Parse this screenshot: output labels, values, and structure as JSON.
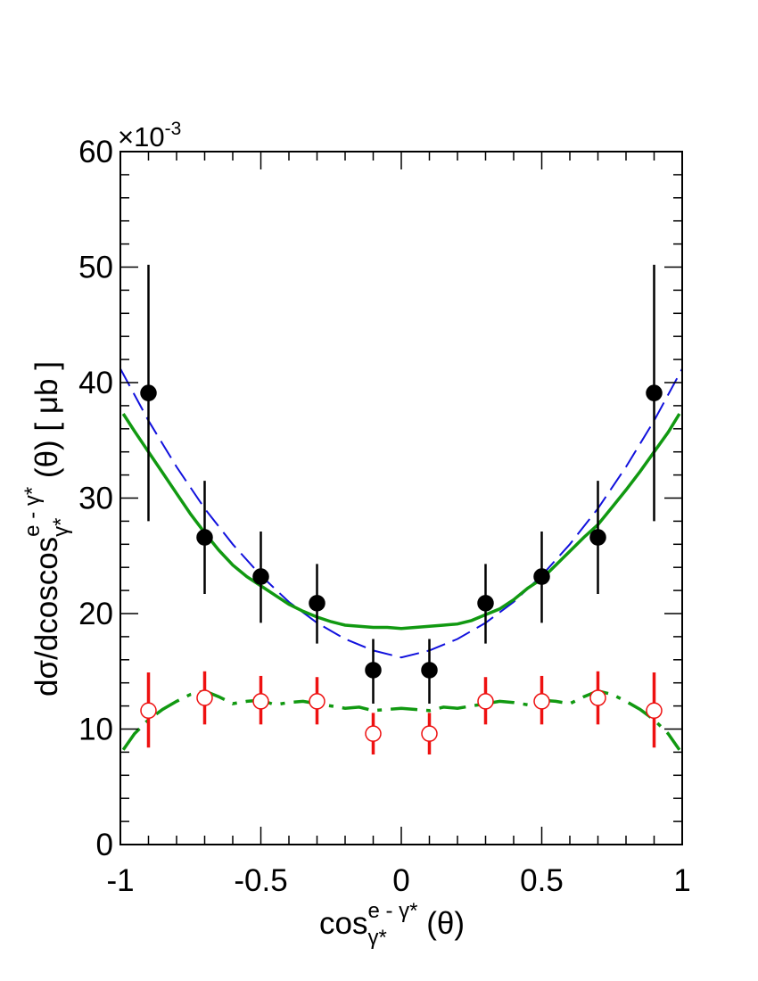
{
  "chart_data": {
    "type": "scatter",
    "xlim": [
      -1,
      1
    ],
    "ylim": [
      0,
      0.06
    ],
    "x_ticks": [
      -1,
      -0.5,
      0,
      0.5,
      1
    ],
    "y_ticks": [
      0,
      10,
      20,
      30,
      40,
      50,
      60
    ],
    "x_tick_labels": [
      "-1",
      "-0.5",
      "0",
      "0.5",
      "1"
    ],
    "y_tick_labels": [
      "0",
      "10",
      "20",
      "30",
      "40",
      "50",
      "60"
    ],
    "y_multiplier": {
      "base": "×10",
      "exponent": "-3"
    },
    "xlabel": {
      "main": "cos",
      "superscript": "e - γ*",
      "subscript": "γ*",
      "suffix": " (θ)"
    },
    "ylabel": {
      "main": "dσ/dcoscos",
      "superscript": "e - γ*",
      "subscript": "γ*",
      "suffix": " (θ) [ μb ]"
    },
    "grid": false,
    "legend": "none",
    "series": [
      {
        "kind": "points",
        "marker": "filled-circle",
        "color": "#000000",
        "x": [
          -0.9,
          -0.7,
          -0.5,
          -0.3,
          -0.1,
          0.1,
          0.3,
          0.5,
          0.7,
          0.9
        ],
        "y": [
          0.0391,
          0.0266,
          0.0232,
          0.0209,
          0.0151,
          0.0151,
          0.0209,
          0.0232,
          0.0266,
          0.0391
        ],
        "y_low": [
          0.028,
          0.0217,
          0.0192,
          0.0174,
          0.0122,
          0.0122,
          0.0174,
          0.0192,
          0.0217,
          0.028
        ],
        "y_high": [
          0.0502,
          0.0315,
          0.0271,
          0.0243,
          0.0178,
          0.0178,
          0.0243,
          0.0271,
          0.0315,
          0.0502
        ]
      },
      {
        "kind": "points",
        "marker": "open-circle",
        "color": "#ee1111",
        "x": [
          -0.9,
          -0.7,
          -0.5,
          -0.3,
          -0.1,
          0.1,
          0.3,
          0.5,
          0.7,
          0.9
        ],
        "y": [
          0.0116,
          0.0127,
          0.0124,
          0.0124,
          0.0096,
          0.0096,
          0.0124,
          0.0124,
          0.0127,
          0.0116
        ],
        "y_low": [
          0.0084,
          0.0104,
          0.0104,
          0.0104,
          0.0078,
          0.0078,
          0.0104,
          0.0104,
          0.0104,
          0.0084
        ],
        "y_high": [
          0.0149,
          0.015,
          0.0146,
          0.0145,
          0.0114,
          0.0114,
          0.0145,
          0.0146,
          0.015,
          0.0149
        ]
      },
      {
        "kind": "curve",
        "style": "dashed",
        "color": "#1111dd",
        "x": [
          -1,
          -0.9,
          -0.8,
          -0.7,
          -0.6,
          -0.5,
          -0.4,
          -0.3,
          -0.2,
          -0.1,
          0,
          0.1,
          0.2,
          0.3,
          0.4,
          0.5,
          0.6,
          0.7,
          0.8,
          0.9,
          1
        ],
        "y": [
          0.0412,
          0.0367,
          0.0327,
          0.0291,
          0.026,
          0.0233,
          0.021,
          0.0192,
          0.0178,
          0.0168,
          0.0162,
          0.0168,
          0.0178,
          0.0192,
          0.021,
          0.0233,
          0.026,
          0.0291,
          0.0327,
          0.0367,
          0.0412
        ]
      },
      {
        "kind": "curve",
        "style": "solid",
        "color": "#119911",
        "x": [
          -0.99,
          -0.95,
          -0.9,
          -0.85,
          -0.8,
          -0.75,
          -0.7,
          -0.65,
          -0.6,
          -0.55,
          -0.5,
          -0.45,
          -0.4,
          -0.35,
          -0.3,
          -0.25,
          -0.2,
          -0.15,
          -0.1,
          -0.05,
          0,
          0.05,
          0.1,
          0.15,
          0.2,
          0.25,
          0.3,
          0.35,
          0.4,
          0.45,
          0.5,
          0.55,
          0.6,
          0.65,
          0.7,
          0.75,
          0.8,
          0.85,
          0.9,
          0.95,
          0.99
        ],
        "y": [
          0.0373,
          0.0358,
          0.034,
          0.0322,
          0.0304,
          0.0286,
          0.027,
          0.0255,
          0.0242,
          0.0232,
          0.0224,
          0.0216,
          0.0208,
          0.0202,
          0.0197,
          0.0193,
          0.019,
          0.0189,
          0.0188,
          0.0188,
          0.0187,
          0.0188,
          0.0189,
          0.019,
          0.0191,
          0.0194,
          0.0199,
          0.0204,
          0.0212,
          0.0222,
          0.023,
          0.0242,
          0.0254,
          0.0266,
          0.0277,
          0.0292,
          0.0307,
          0.0323,
          0.034,
          0.0357,
          0.0373
        ]
      },
      {
        "kind": "curve",
        "style": "long-dash",
        "color": "#119911",
        "x": [
          -0.99,
          -0.95,
          -0.9,
          -0.85,
          -0.8,
          -0.75,
          -0.7,
          -0.65,
          -0.6,
          -0.55,
          -0.5,
          -0.45,
          -0.4,
          -0.35,
          -0.3,
          -0.25,
          -0.2,
          -0.15,
          -0.1,
          -0.05,
          0,
          0.05,
          0.1,
          0.15,
          0.2,
          0.25,
          0.3,
          0.35,
          0.4,
          0.45,
          0.5,
          0.55,
          0.6,
          0.65,
          0.7,
          0.75,
          0.8,
          0.85,
          0.9,
          0.95,
          0.99
        ],
        "y": [
          0.0082,
          0.0096,
          0.0108,
          0.0117,
          0.0124,
          0.013,
          0.0133,
          0.0128,
          0.0122,
          0.0124,
          0.0125,
          0.0121,
          0.0123,
          0.0124,
          0.0122,
          0.012,
          0.0118,
          0.0119,
          0.0116,
          0.0117,
          0.0118,
          0.0117,
          0.0116,
          0.0119,
          0.0118,
          0.012,
          0.0122,
          0.0124,
          0.0123,
          0.0121,
          0.0125,
          0.0124,
          0.0122,
          0.0128,
          0.0133,
          0.013,
          0.0124,
          0.0117,
          0.0108,
          0.0096,
          0.0082
        ]
      }
    ]
  }
}
